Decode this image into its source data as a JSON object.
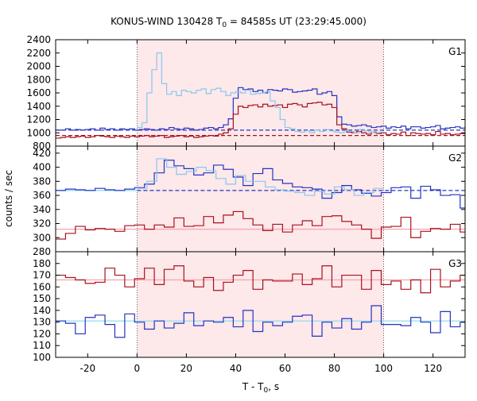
{
  "chart_data": {
    "type": "line",
    "title": "KONUS-WIND 130428 T",
    "title_sub": "0",
    "title_rest": " = 84585s UT (23:29:45.000)",
    "xlabel": "T - T",
    "xlabel_sub": "0",
    "xlabel_rest": ", s",
    "ylabel": "counts / sec",
    "xlim": [
      -33,
      133
    ],
    "xticks": [
      -20,
      0,
      20,
      40,
      60,
      80,
      100,
      120
    ],
    "shaded_interval": [
      0,
      100
    ],
    "colors": {
      "shade": "#fde8ea",
      "blue_step": "#2533c0",
      "red_step": "#a8121c",
      "light_blue_step": "#88c8ee",
      "blue_bg": "#2533c0",
      "red_bg": "#a8121c",
      "pink_bg": "#f7a2b0",
      "cyan_bg": "#88d8ee"
    },
    "panels": [
      {
        "label": "G1",
        "ylim": [
          800,
          2400
        ],
        "yticks": [
          800,
          1000,
          1200,
          1400,
          1600,
          1800,
          2000,
          2200,
          2400
        ],
        "background_levels": [
          {
            "name": "G1 background (blue)",
            "value": 1040,
            "style": "dashed",
            "color_key": "blue_bg",
            "x_range": [
              -33,
              133
            ]
          },
          {
            "name": "G1 background (red)",
            "value": 960,
            "style": "dashed",
            "color_key": "red_bg",
            "x_range": [
              -33,
              133
            ]
          }
        ],
        "series": [
          {
            "name": "G1 blue",
            "color_key": "blue_step",
            "bin": 2,
            "x_start": -33,
            "values": [
              1040,
              1040,
              1060,
              1040,
              1050,
              1040,
              1050,
              1060,
              1040,
              1070,
              1050,
              1060,
              1040,
              1060,
              1050,
              1060,
              1040,
              1050,
              1060,
              1050,
              1040,
              1060,
              1050,
              1080,
              1060,
              1050,
              1070,
              1060,
              1040,
              1050,
              1070,
              1080,
              1060,
              1080,
              1120,
              1210,
              1520,
              1680,
              1650,
              1660,
              1620,
              1640,
              1600,
              1650,
              1640,
              1630,
              1660,
              1650,
              1610,
              1620,
              1630,
              1640,
              1660,
              1580,
              1600,
              1620,
              1560,
              1240,
              1130,
              1120,
              1100,
              1110,
              1120,
              1100,
              1080,
              1090,
              1100,
              1070,
              1090,
              1080,
              1100,
              1060,
              1090,
              1090,
              1070,
              1080,
              1090,
              1110,
              1060,
              1070,
              1080,
              1090,
              1070,
              1100,
              1080,
              1050,
              1070,
              1080,
              1070,
              1060,
              1090,
              1080,
              1060,
              1070,
              1080,
              1080,
              1100,
              1070,
              1060,
              1080,
              1090,
              1050,
              1060,
              1050,
              1070,
              1040,
              1050,
              1060,
              1050,
              1040,
              1060,
              1040,
              1030,
              1050,
              1040,
              1060,
              1050,
              1040,
              1050,
              1040,
              1030,
              1050,
              1040,
              1060,
              1050,
              1040,
              1050,
              1040,
              1060,
              1050,
              1040,
              1050,
              1040,
              1060,
              1050,
              1040,
              1050,
              1040,
              1030,
              1040,
              1050,
              1040,
              1050,
              1040,
              1030,
              1040,
              1050,
              1040,
              1050,
              1030,
              1040,
              1050,
              1040,
              1050,
              1040,
              1030,
              1040,
              1050,
              1040,
              1050,
              1030,
              1040,
              1050
            ]
          },
          {
            "name": "G1 red",
            "color_key": "red_step",
            "bin": 2,
            "x_start": -33,
            "values": [
              920,
              930,
              940,
              930,
              940,
              950,
              930,
              940,
              960,
              950,
              940,
              930,
              950,
              940,
              930,
              950,
              940,
              950,
              960,
              940,
              950,
              960,
              930,
              940,
              950,
              960,
              940,
              950,
              930,
              940,
              950,
              960,
              950,
              980,
              1000,
              1060,
              1280,
              1400,
              1380,
              1410,
              1420,
              1390,
              1430,
              1400,
              1410,
              1420,
              1380,
              1430,
              1440,
              1420,
              1390,
              1440,
              1450,
              1460,
              1420,
              1430,
              1380,
              1120,
              1060,
              1010,
              1000,
              1020,
              1000,
              980,
              1010,
              990,
              1000,
              970,
              990,
              980,
              1010,
              960,
              1000,
              990,
              980,
              990,
              970,
              1020,
              980,
              990,
              970,
              980,
              990,
              1010,
              990,
              970,
              960,
              980,
              1000,
              960,
              990,
              980,
              970,
              960,
              970,
              960,
              980,
              960,
              970,
              960,
              950,
              960,
              940,
              950,
              960,
              950,
              940,
              960,
              950,
              940,
              950,
              960,
              940,
              950,
              940,
              960,
              950,
              940,
              950,
              940,
              960,
              950,
              940,
              950,
              940,
              960,
              950,
              940,
              950,
              940,
              960,
              950,
              940,
              950,
              940,
              960,
              950,
              940,
              950,
              940,
              960,
              950,
              940,
              950,
              940,
              960,
              950,
              940,
              950,
              940,
              960,
              950,
              940,
              950,
              940,
              960,
              950,
              940,
              950,
              940,
              960,
              950,
              940
            ]
          },
          {
            "name": "G1 burst profile",
            "color_key": "light_blue_step",
            "bin": 2,
            "x_start": 0,
            "values": [
              1080,
              1150,
              1600,
              1950,
              2200,
              1740,
              1580,
              1620,
              1560,
              1640,
              1620,
              1600,
              1640,
              1660,
              1590,
              1650,
              1670,
              1620,
              1560,
              1600,
              1620,
              1600,
              1640,
              1580,
              1590,
              1600,
              1620,
              1480,
              1380,
              1200,
              1080,
              1060,
              1020,
              1010,
              1030,
              1000,
              1040,
              1020,
              1050,
              1030,
              1010,
              1000,
              1030,
              1020,
              1000,
              1050,
              1030,
              1010,
              1000,
              1010
            ]
          }
        ]
      },
      {
        "label": "G2",
        "ylim": [
          280,
          430
        ],
        "yticks": [
          280,
          300,
          320,
          340,
          360,
          380,
          400,
          420
        ],
        "background_levels": [
          {
            "name": "G2 background (blue)",
            "value": 367,
            "style": "dashed",
            "color_key": "blue_bg",
            "x_range": [
              0,
              133
            ]
          },
          {
            "name": "G2 background (light blue)",
            "value": 367,
            "style": "solid",
            "color_key": "cyan_bg",
            "x_range": [
              -33,
              0
            ]
          },
          {
            "name": "G2 background (pink)",
            "value": 312,
            "style": "solid",
            "color_key": "pink_bg",
            "x_range": [
              -33,
              133
            ]
          }
        ],
        "series": [
          {
            "name": "G2 blue",
            "color_key": "blue_step",
            "bin": 4,
            "x_start": -33,
            "values": [
              367,
              369,
              368,
              367,
              370,
              368,
              367,
              369,
              371,
              376,
              392,
              410,
              402,
              398,
              389,
              392,
              403,
              397,
              386,
              374,
              391,
              398,
              382,
              377,
              372,
              371,
              369,
              356,
              364,
              374,
              368,
              363,
              359,
              364,
              371,
              372,
              356,
              373,
              368,
              360,
              361,
              342
            ]
          },
          {
            "name": "G2 red",
            "color_key": "red_step",
            "bin": 4,
            "x_start": -33,
            "values": [
              298,
              306,
              316,
              311,
              313,
              312,
              309,
              317,
              318,
              312,
              318,
              315,
              328,
              316,
              317,
              330,
              321,
              332,
              337,
              327,
              318,
              310,
              319,
              308,
              318,
              324,
              317,
              330,
              331,
              323,
              318,
              312,
              299,
              315,
              316,
              329,
              300,
              309,
              313,
              312,
              319,
              308
            ]
          },
          {
            "name": "G2 burst profile",
            "color_key": "light_blue_step",
            "bin": 4,
            "x_start": 0,
            "values": [
              370,
              380,
              412,
              400,
              390,
              394,
              400,
              395,
              384,
              376,
              388,
              380,
              380,
              372,
              368,
              366,
              364,
              360,
              366,
              362,
              372,
              368,
              360,
              364,
              370
            ]
          }
        ]
      },
      {
        "label": "G3",
        "ylim": [
          100,
          190
        ],
        "yticks": [
          100,
          110,
          120,
          130,
          140,
          150,
          160,
          170,
          180
        ],
        "background_levels": [
          {
            "name": "G3 background (pink)",
            "value": 166,
            "style": "solid",
            "color_key": "pink_bg",
            "x_range": [
              -33,
              133
            ]
          },
          {
            "name": "G3 background (cyan)",
            "value": 131,
            "style": "solid",
            "color_key": "cyan_bg",
            "x_range": [
              -33,
              133
            ]
          }
        ],
        "series": [
          {
            "name": "G3 red",
            "color_key": "red_step",
            "bin": 4,
            "x_start": -33,
            "values": [
              170,
              168,
              166,
              163,
              164,
              176,
              170,
              160,
              167,
              176,
              162,
              175,
              178,
              165,
              160,
              168,
              157,
              164,
              170,
              174,
              158,
              166,
              165,
              165,
              171,
              162,
              167,
              178,
              160,
              170,
              170,
              158,
              174,
              162,
              165,
              158,
              166,
              155,
              175,
              160,
              165,
              170
            ]
          },
          {
            "name": "G3 blue",
            "color_key": "blue_step",
            "bin": 4,
            "x_start": -33,
            "values": [
              131,
              129,
              120,
              134,
              136,
              128,
              117,
              137,
              130,
              124,
              131,
              125,
              129,
              138,
              127,
              131,
              130,
              134,
              126,
              140,
              122,
              130,
              127,
              130,
              135,
              136,
              118,
              130,
              125,
              133,
              124,
              130,
              144,
              128,
              128,
              127,
              134,
              130,
              121,
              139,
              126,
              130
            ]
          }
        ]
      }
    ]
  }
}
